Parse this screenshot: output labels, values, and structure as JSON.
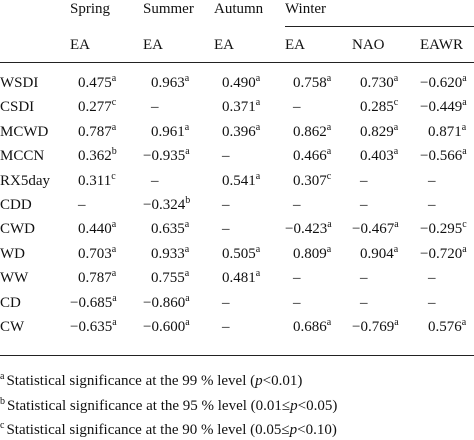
{
  "table": {
    "seasons": [
      {
        "label": "Spring",
        "span": 1
      },
      {
        "label": "Summer",
        "span": 1
      },
      {
        "label": "Autumn",
        "span": 1
      },
      {
        "label": "Winter",
        "span": 3
      }
    ],
    "subheaders": [
      "EA",
      "EA",
      "EA",
      "EA",
      "NAO",
      "EAWR"
    ],
    "rows": [
      {
        "label": "WSDI",
        "cells": [
          {
            "text": "0.475",
            "sup": "a"
          },
          {
            "text": "0.963",
            "sup": "a"
          },
          {
            "text": "0.490",
            "sup": "a"
          },
          {
            "text": "0.758",
            "sup": "a"
          },
          {
            "text": "0.730",
            "sup": "a"
          },
          {
            "text": "−0.620",
            "sup": "a"
          }
        ]
      },
      {
        "label": "CSDI",
        "cells": [
          {
            "text": "0.277",
            "sup": "c"
          },
          {
            "text": "–"
          },
          {
            "text": "0.371",
            "sup": "a"
          },
          {
            "text": "–"
          },
          {
            "text": "0.285",
            "sup": "c"
          },
          {
            "text": "−0.449",
            "sup": "a"
          }
        ]
      },
      {
        "label": "MCWD",
        "cells": [
          {
            "text": "0.787",
            "sup": "a"
          },
          {
            "text": "0.961",
            "sup": "a"
          },
          {
            "text": "0.396",
            "sup": "a"
          },
          {
            "text": "0.862",
            "sup": "a"
          },
          {
            "text": "0.829",
            "sup": "a"
          },
          {
            "text": "0.871",
            "sup": "a"
          }
        ]
      },
      {
        "label": "MCCN",
        "cells": [
          {
            "text": "0.362",
            "sup": "b"
          },
          {
            "text": "−0.935",
            "sup": "a"
          },
          {
            "text": "–"
          },
          {
            "text": "0.466",
            "sup": "a"
          },
          {
            "text": "0.403",
            "sup": "a"
          },
          {
            "text": "−0.566",
            "sup": "a"
          }
        ]
      },
      {
        "label": "RX5day",
        "cells": [
          {
            "text": "0.311",
            "sup": "c"
          },
          {
            "text": "–"
          },
          {
            "text": "0.541",
            "sup": "a"
          },
          {
            "text": "0.307",
            "sup": "c"
          },
          {
            "text": "–"
          },
          {
            "text": "–"
          }
        ]
      },
      {
        "label": "CDD",
        "cells": [
          {
            "text": "–"
          },
          {
            "text": "−0.324",
            "sup": "b"
          },
          {
            "text": "–"
          },
          {
            "text": "–"
          },
          {
            "text": "–"
          },
          {
            "text": "–"
          }
        ]
      },
      {
        "label": "CWD",
        "cells": [
          {
            "text": "0.440",
            "sup": "a"
          },
          {
            "text": "0.635",
            "sup": "a"
          },
          {
            "text": "–"
          },
          {
            "text": "−0.423",
            "sup": "a"
          },
          {
            "text": "−0.467",
            "sup": "a"
          },
          {
            "text": "−0.295",
            "sup": "c"
          }
        ]
      },
      {
        "label": "WD",
        "cells": [
          {
            "text": "0.703",
            "sup": "a"
          },
          {
            "text": "0.933",
            "sup": "a"
          },
          {
            "text": "0.505",
            "sup": "a"
          },
          {
            "text": "0.809",
            "sup": "a"
          },
          {
            "text": "0.904",
            "sup": "a"
          },
          {
            "text": "−0.720",
            "sup": "a"
          }
        ]
      },
      {
        "label": "WW",
        "cells": [
          {
            "text": "0.787",
            "sup": "a"
          },
          {
            "text": "0.755",
            "sup": "a"
          },
          {
            "text": "0.481",
            "sup": "a"
          },
          {
            "text": "–"
          },
          {
            "text": "–"
          },
          {
            "text": "–"
          }
        ]
      },
      {
        "label": "CD",
        "cells": [
          {
            "text": "−0.685",
            "sup": "a"
          },
          {
            "text": "−0.860",
            "sup": "a"
          },
          {
            "text": "–"
          },
          {
            "text": "–"
          },
          {
            "text": "–"
          },
          {
            "text": "–"
          }
        ]
      },
      {
        "label": "CW",
        "cells": [
          {
            "text": "−0.635",
            "sup": "a"
          },
          {
            "text": "−0.600",
            "sup": "a"
          },
          {
            "text": "–"
          },
          {
            "text": "0.686",
            "sup": "a"
          },
          {
            "text": "−0.769",
            "sup": "a"
          },
          {
            "text": "0.576",
            "sup": "a"
          }
        ]
      }
    ]
  },
  "footnotes": [
    {
      "mark": "a",
      "text": "Statistical significance at the 99 % level (",
      "italic": "p",
      "rest": "<0.01)"
    },
    {
      "mark": "b",
      "text": "Statistical significance at the 95 % level (0.01≤",
      "italic": "p",
      "rest": "<0.05)"
    },
    {
      "mark": "c",
      "text": "Statistical significance at the 90 % level (0.05≤",
      "italic": "p",
      "rest": "<0.10)"
    }
  ]
}
